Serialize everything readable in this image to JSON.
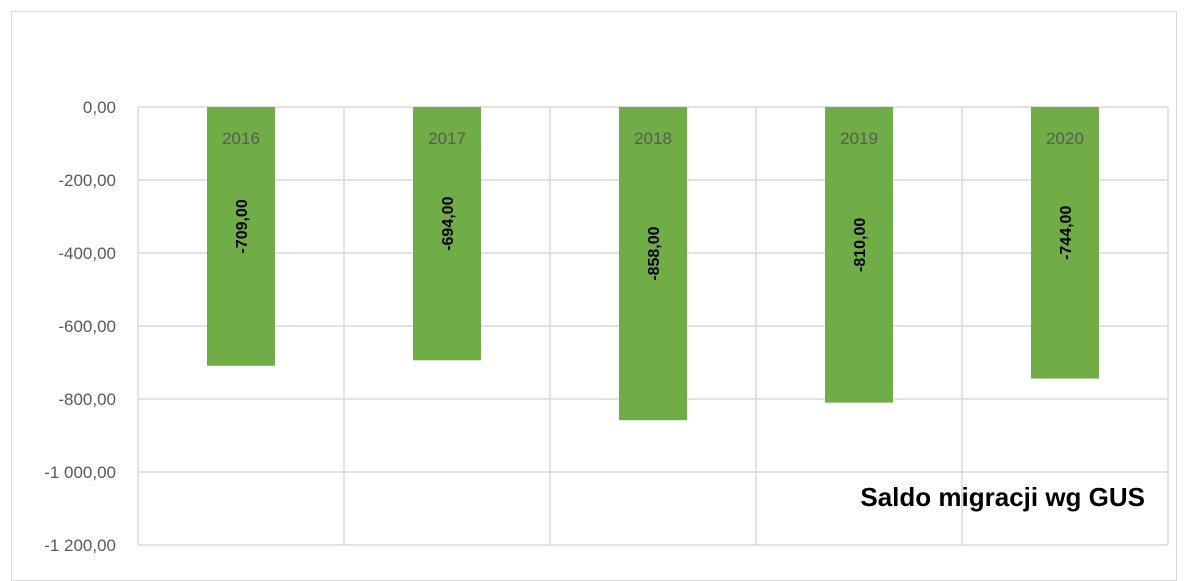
{
  "chart_data": {
    "type": "bar",
    "title": "Saldo migracji  wg GUS",
    "xlabel": "",
    "ylabel": "",
    "categories": [
      "2016",
      "2017",
      "2018",
      "2019",
      "2020"
    ],
    "values": [
      -709,
      -694,
      -858,
      -810,
      -744
    ],
    "data_labels": [
      "-709,00",
      "-694,00",
      "-858,00",
      "-810,00",
      "-744,00"
    ],
    "ylim": [
      -1200,
      0
    ],
    "yticks": [
      0,
      -200,
      -400,
      -600,
      -800,
      -1000,
      -1200
    ],
    "ytick_labels": [
      "0,00",
      "-200,00",
      "-400,00",
      "-600,00",
      "-800,00",
      "-1 000,00",
      "-1 200,00"
    ],
    "grid": true,
    "legend": "none",
    "bar_color": "#70ad47",
    "grid_color": "#d9d9d9",
    "title_position": "bottom-right"
  }
}
